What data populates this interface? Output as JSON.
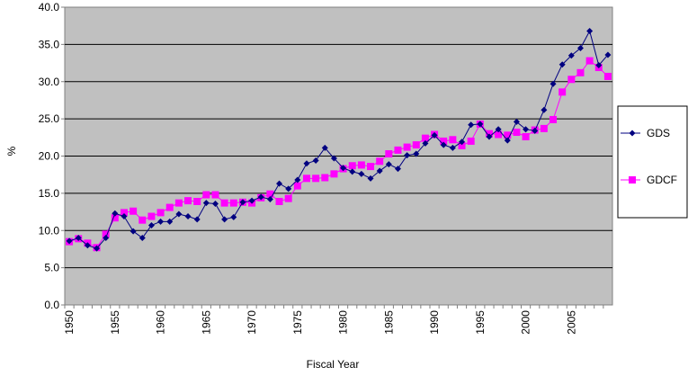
{
  "chart_data": {
    "type": "line",
    "title": "",
    "xlabel": "Fiscal Year",
    "ylabel": "%",
    "xlim": [
      1950,
      2009
    ],
    "ylim": [
      0,
      40
    ],
    "grid": "horizontal",
    "legend_position": "right",
    "x_ticks": [
      "1950",
      "1955",
      "1960",
      "1965",
      "1970",
      "1975",
      "1980",
      "1985",
      "1990",
      "1995",
      "2000",
      "2005"
    ],
    "y_ticks": [
      "0.0",
      "5.0",
      "10.0",
      "15.0",
      "20.0",
      "25.0",
      "30.0",
      "35.0",
      "40.0"
    ],
    "plot_background": "#c0c0c0",
    "x": [
      1950,
      1951,
      1952,
      1953,
      1954,
      1955,
      1956,
      1957,
      1958,
      1959,
      1960,
      1961,
      1962,
      1963,
      1964,
      1965,
      1966,
      1967,
      1968,
      1969,
      1970,
      1971,
      1972,
      1973,
      1974,
      1975,
      1976,
      1977,
      1978,
      1979,
      1980,
      1981,
      1982,
      1983,
      1984,
      1985,
      1986,
      1987,
      1988,
      1989,
      1990,
      1991,
      1992,
      1993,
      1994,
      1995,
      1996,
      1997,
      1998,
      1999,
      2000,
      2001,
      2002,
      2003,
      2004,
      2005,
      2006,
      2007,
      2008,
      2009
    ],
    "series": [
      {
        "name": "GDS",
        "color": "#000080",
        "marker": "diamond",
        "values": [
          8.6,
          9.0,
          8.0,
          7.6,
          9.0,
          12.3,
          11.9,
          9.9,
          9.0,
          10.7,
          11.2,
          11.2,
          12.2,
          11.9,
          11.5,
          13.7,
          13.6,
          11.5,
          11.8,
          13.8,
          14.0,
          14.5,
          14.2,
          16.3,
          15.6,
          16.8,
          19.0,
          19.4,
          21.1,
          19.7,
          18.4,
          17.9,
          17.6,
          17.0,
          18.0,
          18.9,
          18.3,
          20.1,
          20.3,
          21.7,
          22.8,
          21.5,
          21.1,
          21.9,
          24.2,
          24.3,
          22.6,
          23.6,
          22.1,
          24.6,
          23.6,
          23.4,
          26.2,
          29.7,
          32.3,
          33.5,
          34.5,
          36.8,
          32.2,
          33.6
        ]
      },
      {
        "name": "GDCF",
        "color": "#ff00ff",
        "marker": "square",
        "values": [
          8.5,
          8.9,
          8.3,
          7.7,
          9.5,
          11.7,
          12.4,
          12.6,
          11.4,
          11.9,
          12.4,
          13.1,
          13.7,
          14.0,
          13.9,
          14.8,
          14.8,
          13.7,
          13.7,
          13.8,
          13.7,
          14.4,
          14.9,
          13.9,
          14.3,
          16.0,
          17.0,
          17.0,
          17.1,
          17.6,
          18.3,
          18.7,
          18.8,
          18.6,
          19.3,
          20.3,
          20.8,
          21.2,
          21.5,
          22.4,
          22.9,
          22.0,
          22.2,
          21.4,
          22.0,
          24.3,
          23.0,
          22.9,
          22.8,
          23.2,
          22.6,
          23.5,
          23.7,
          24.9,
          28.6,
          30.3,
          31.2,
          32.8,
          31.9,
          30.7
        ]
      }
    ]
  }
}
